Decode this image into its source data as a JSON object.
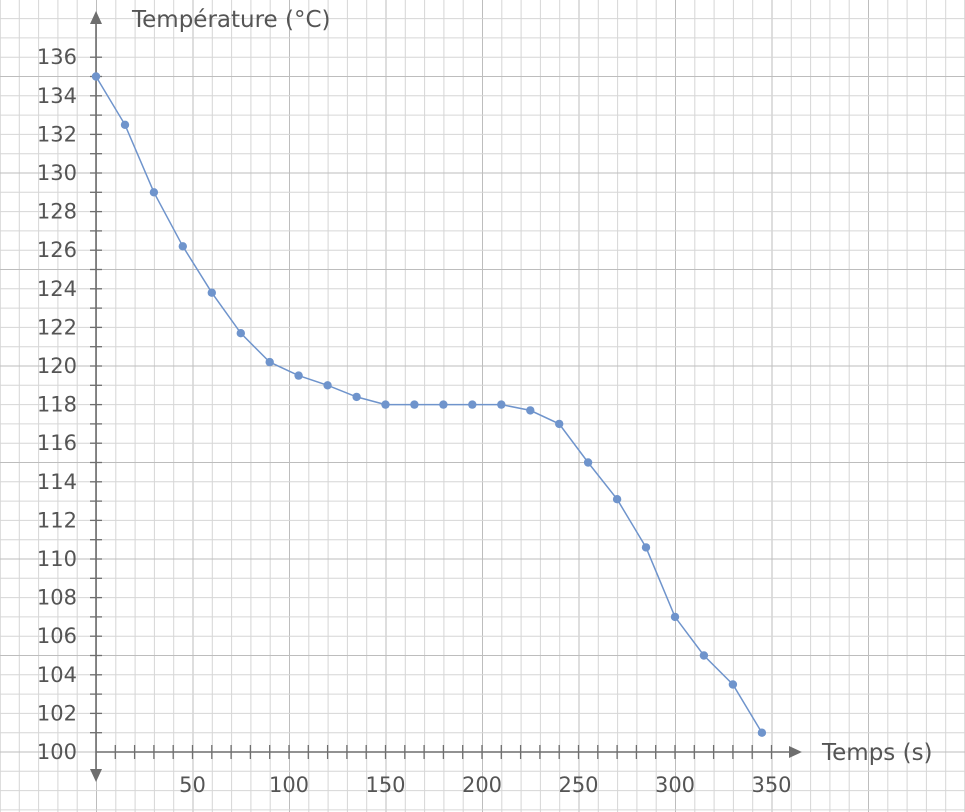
{
  "chart_data": {
    "type": "line",
    "xlabel": "Temps (s)",
    "ylabel": "Température (°C)",
    "xlim": [
      0,
      350
    ],
    "ylim": [
      100,
      136
    ],
    "x_ticks": [
      50,
      100,
      150,
      200,
      250,
      300,
      350
    ],
    "y_ticks": [
      100,
      102,
      104,
      106,
      108,
      110,
      112,
      114,
      116,
      118,
      120,
      122,
      124,
      126,
      128,
      130,
      132,
      134,
      136
    ],
    "x_tick_labels": [
      "50",
      "100",
      "150",
      "200",
      "250",
      "300",
      "350"
    ],
    "y_tick_labels": [
      "100",
      "102",
      "104",
      "106",
      "108",
      "110",
      "112",
      "114",
      "116",
      "118",
      "120",
      "122",
      "124",
      "126",
      "128",
      "130",
      "132",
      "134",
      "136"
    ],
    "grid": true,
    "series": [
      {
        "color": "#6f94cc",
        "x": [
          0,
          15,
          30,
          45,
          60,
          75,
          90,
          105,
          120,
          135,
          150,
          165,
          180,
          195,
          210,
          225,
          240,
          255,
          270,
          285,
          300,
          315,
          330,
          345
        ],
        "y": [
          135,
          132.5,
          129,
          126.2,
          123.8,
          121.7,
          120.2,
          119.5,
          119,
          118.4,
          118,
          118,
          118,
          118,
          118,
          117.7,
          117,
          115,
          113.1,
          110.6,
          107,
          105,
          103.5,
          101
        ]
      }
    ]
  }
}
